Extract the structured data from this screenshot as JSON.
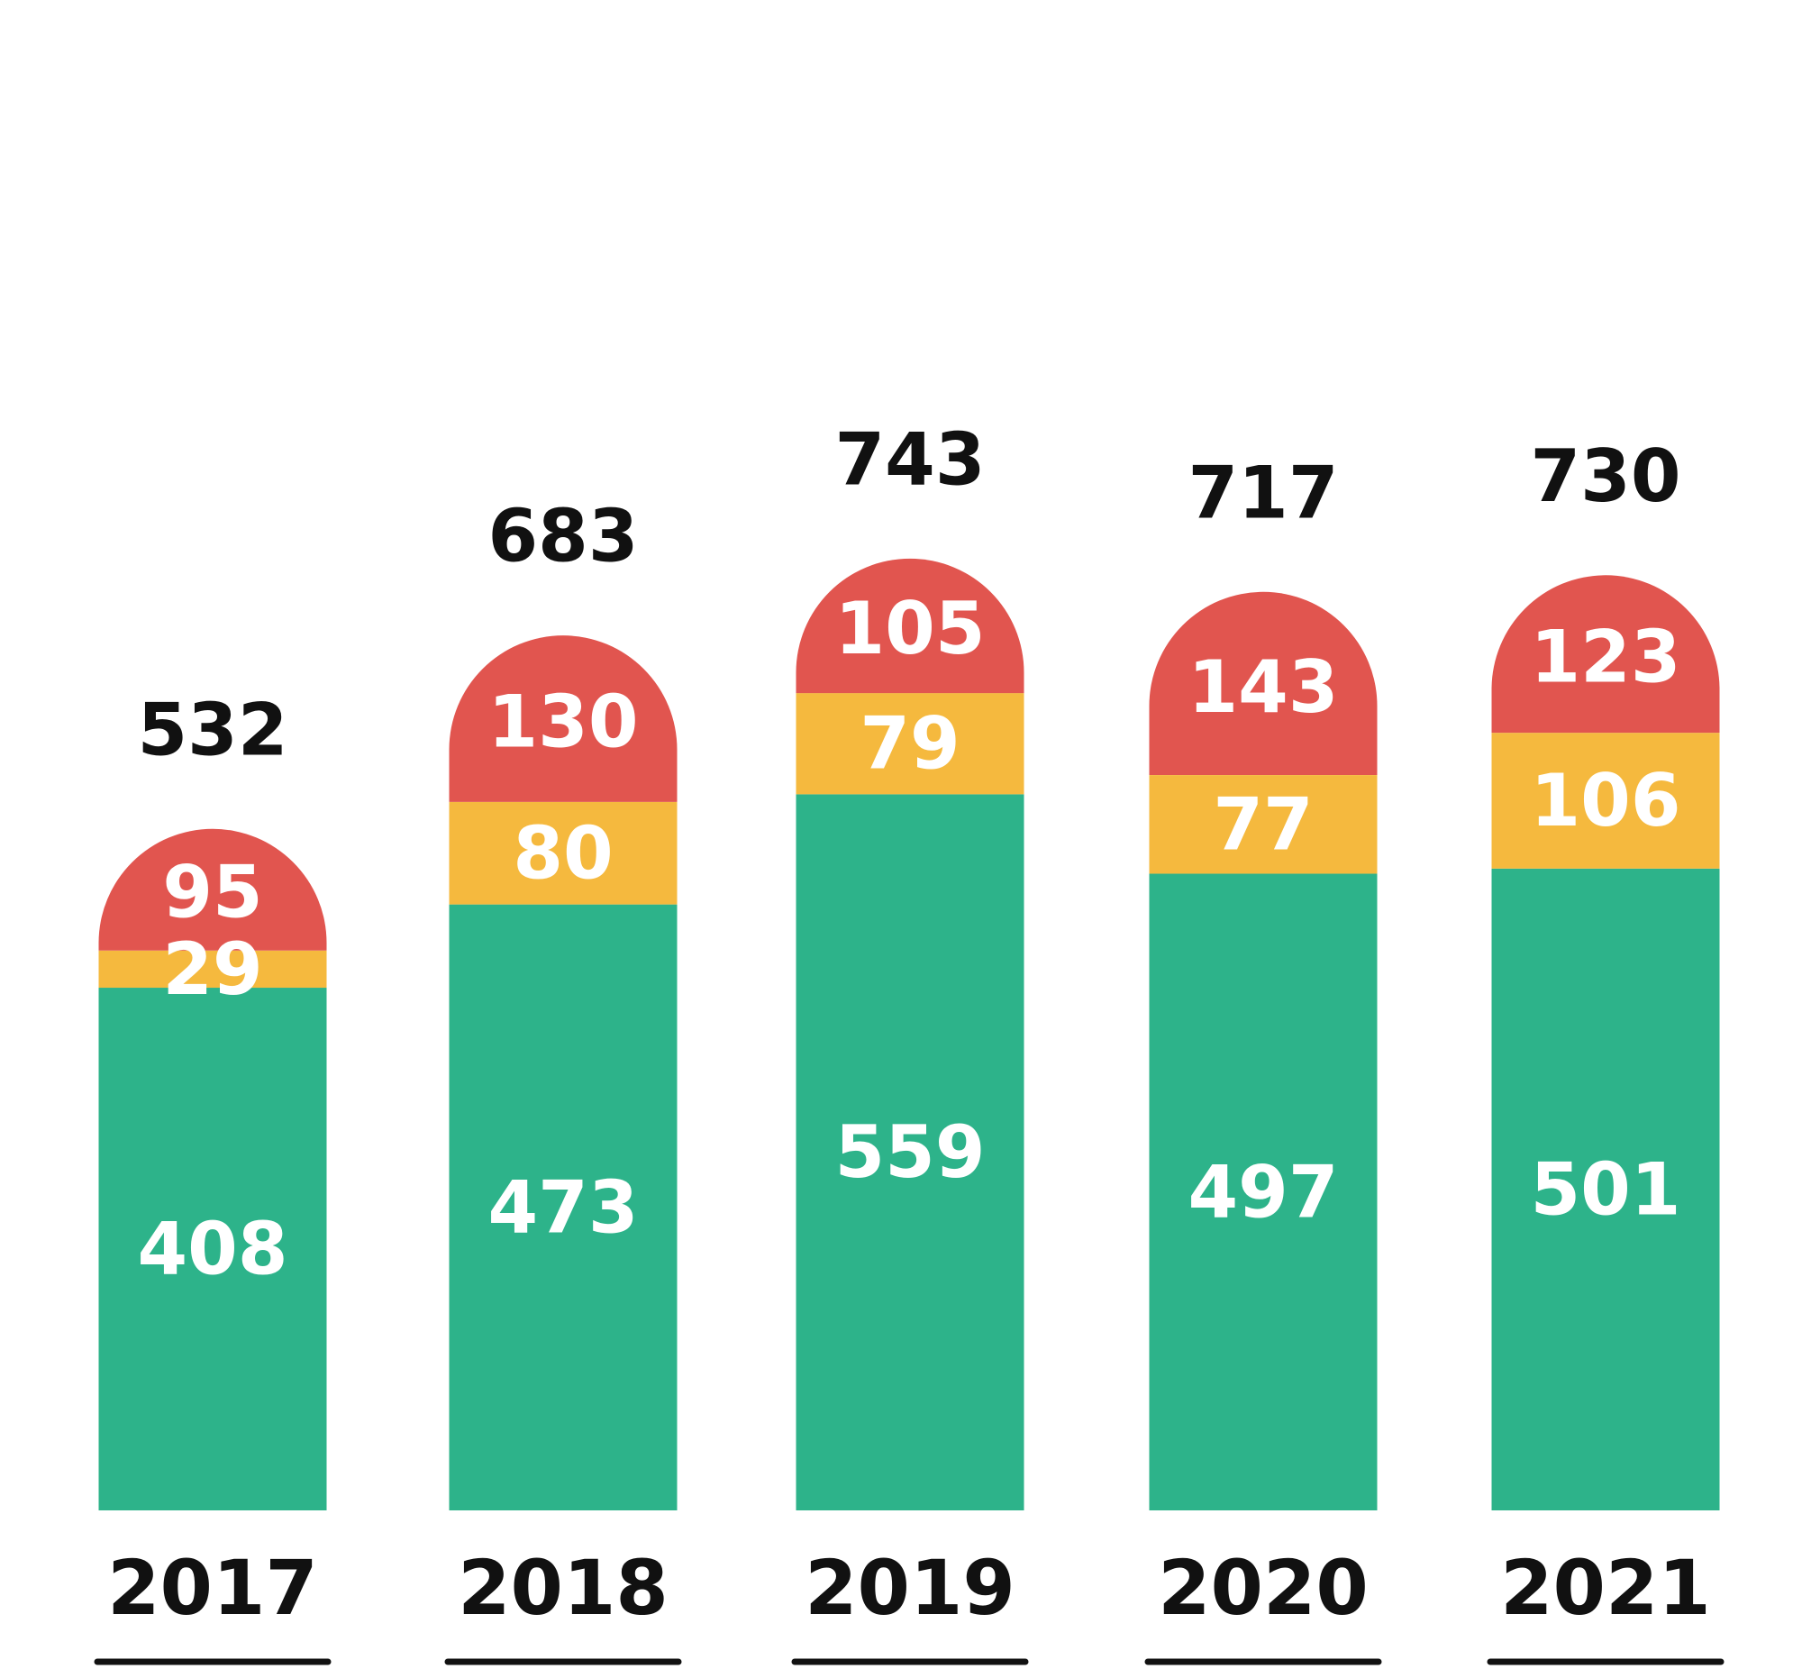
{
  "chart_data": {
    "type": "bar",
    "stacked": true,
    "title": "",
    "xlabel": "",
    "ylabel": "",
    "categories": [
      "2017",
      "2018",
      "2019",
      "2020",
      "2021"
    ],
    "series": [
      {
        "values": [
          408,
          473,
          559,
          497,
          501
        ],
        "color": "#2db38a"
      },
      {
        "values": [
          29,
          80,
          79,
          77,
          106
        ],
        "color": "#f5b93e"
      },
      {
        "values": [
          95,
          130,
          105,
          143,
          123
        ],
        "color": "#e1554f"
      }
    ],
    "totals": [
      532,
      683,
      743,
      717,
      730
    ],
    "grid": false,
    "legend": "none"
  }
}
